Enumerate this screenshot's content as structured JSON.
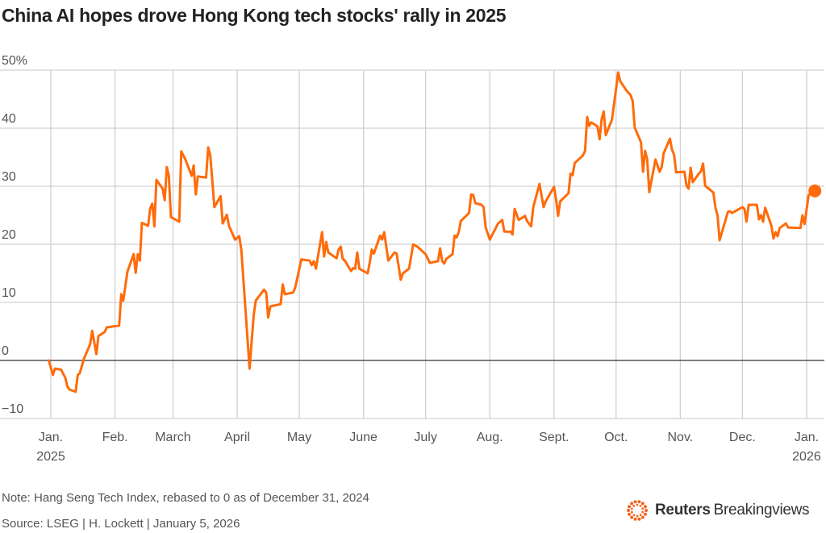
{
  "title": "China AI hopes drove Hong Kong tech stocks' rally in 2025",
  "note": "Note: Hang Seng Tech Index, rebased to 0 as of December 31, 2024",
  "source": "Source: LSEG | H. Lockett | January 5, 2026",
  "logo": {
    "brand": "Reuters",
    "product": "Breakingviews"
  },
  "colors": {
    "line": "#ff6b0a",
    "grid": "#d0d0d0",
    "zero_line": "#333333",
    "text": "#222222",
    "muted": "#555555"
  },
  "chart_data": {
    "type": "line",
    "title": "China AI hopes drove Hong Kong tech stocks' rally in 2025",
    "xlabel": "",
    "ylabel": "",
    "ylim": [
      -10,
      50
    ],
    "xlim": [
      "2024-12-31",
      "2026-01-07"
    ],
    "grid": true,
    "y_ticks": [
      {
        "value": 50,
        "label": "50%"
      },
      {
        "value": 40,
        "label": "40"
      },
      {
        "value": 30,
        "label": "30"
      },
      {
        "value": 20,
        "label": "20"
      },
      {
        "value": 10,
        "label": "10"
      },
      {
        "value": 0,
        "label": "0"
      },
      {
        "value": -10,
        "label": "−10"
      }
    ],
    "x_ticks": [
      {
        "date": "2025-01-01",
        "label": "Jan.",
        "sub": "2025"
      },
      {
        "date": "2025-02-01",
        "label": "Feb.",
        "sub": ""
      },
      {
        "date": "2025-03-01",
        "label": "March",
        "sub": ""
      },
      {
        "date": "2025-04-01",
        "label": "April",
        "sub": ""
      },
      {
        "date": "2025-05-01",
        "label": "May",
        "sub": ""
      },
      {
        "date": "2025-06-01",
        "label": "June",
        "sub": ""
      },
      {
        "date": "2025-07-01",
        "label": "July",
        "sub": ""
      },
      {
        "date": "2025-08-01",
        "label": "Aug.",
        "sub": ""
      },
      {
        "date": "2025-09-01",
        "label": "Sept.",
        "sub": ""
      },
      {
        "date": "2025-10-01",
        "label": "Oct.",
        "sub": ""
      },
      {
        "date": "2025-11-01",
        "label": "Nov.",
        "sub": ""
      },
      {
        "date": "2025-12-01",
        "label": "Dec.",
        "sub": ""
      },
      {
        "date": "2026-01-01",
        "label": "Jan.",
        "sub": "2026"
      }
    ],
    "series": [
      {
        "end_marker": true,
        "points": [
          [
            "2024-12-31",
            0
          ],
          [
            "2025-01-02",
            -2.5
          ],
          [
            "2025-01-03",
            -1.4
          ],
          [
            "2025-01-06",
            -1.6
          ],
          [
            "2025-01-08",
            -3
          ],
          [
            "2025-01-09",
            -4.5
          ],
          [
            "2025-01-10",
            -5.0
          ],
          [
            "2025-01-13",
            -5.4
          ],
          [
            "2025-01-14",
            -2.5
          ],
          [
            "2025-01-15",
            -2.2
          ],
          [
            "2025-01-17",
            0.3
          ],
          [
            "2025-01-20",
            2.8
          ],
          [
            "2025-01-21",
            5.1
          ],
          [
            "2025-01-23",
            1.1
          ],
          [
            "2025-01-24",
            4.2
          ],
          [
            "2025-01-27",
            4.9
          ],
          [
            "2025-01-28",
            5.7
          ],
          [
            "2025-02-03",
            6.0
          ],
          [
            "2025-02-04",
            11.4
          ],
          [
            "2025-02-05",
            10.3
          ],
          [
            "2025-02-07",
            15.3
          ],
          [
            "2025-02-10",
            18.3
          ],
          [
            "2025-02-11",
            15.1
          ],
          [
            "2025-02-12",
            18.3
          ],
          [
            "2025-02-13",
            17.2
          ],
          [
            "2025-02-14",
            23.7
          ],
          [
            "2025-02-17",
            23.2
          ],
          [
            "2025-02-18",
            26.2
          ],
          [
            "2025-02-19",
            27
          ],
          [
            "2025-02-20",
            23.1
          ],
          [
            "2025-02-21",
            31.1
          ],
          [
            "2025-02-24",
            29.6
          ],
          [
            "2025-02-25",
            27.6
          ],
          [
            "2025-02-26",
            33.3
          ],
          [
            "2025-02-27",
            31.8
          ],
          [
            "2025-02-28",
            24.7
          ],
          [
            "2025-03-04",
            23.9
          ],
          [
            "2025-03-05",
            36
          ],
          [
            "2025-03-07",
            34.6
          ],
          [
            "2025-03-10",
            31.8
          ],
          [
            "2025-03-11",
            33.6
          ],
          [
            "2025-03-12",
            28.6
          ],
          [
            "2025-03-13",
            31.7
          ],
          [
            "2025-03-17",
            31.5
          ],
          [
            "2025-03-18",
            36.7
          ],
          [
            "2025-03-19",
            35.3
          ],
          [
            "2025-03-21",
            26.4
          ],
          [
            "2025-03-24",
            28.3
          ],
          [
            "2025-03-25",
            23.6
          ],
          [
            "2025-03-27",
            25.1
          ],
          [
            "2025-03-28",
            23.2
          ],
          [
            "2025-03-31",
            20.8
          ],
          [
            "2025-04-02",
            21.4
          ],
          [
            "2025-04-03",
            19
          ],
          [
            "2025-04-07",
            -1.4
          ],
          [
            "2025-04-08",
            3.3
          ],
          [
            "2025-04-09",
            7.9
          ],
          [
            "2025-04-10",
            10.3
          ],
          [
            "2025-04-14",
            12.2
          ],
          [
            "2025-04-15",
            11.7
          ],
          [
            "2025-04-16",
            7.4
          ],
          [
            "2025-04-17",
            9.3
          ],
          [
            "2025-04-22",
            9.7
          ],
          [
            "2025-04-23",
            13.1
          ],
          [
            "2025-04-24",
            11.4
          ],
          [
            "2025-04-28",
            11.7
          ],
          [
            "2025-04-29",
            12.5
          ],
          [
            "2025-05-02",
            17.4
          ],
          [
            "2025-05-06",
            17.2
          ],
          [
            "2025-05-07",
            16.4
          ],
          [
            "2025-05-08",
            17.1
          ],
          [
            "2025-05-09",
            15.8
          ],
          [
            "2025-05-12",
            22.1
          ],
          [
            "2025-05-13",
            17.9
          ],
          [
            "2025-05-14",
            20.4
          ],
          [
            "2025-05-15",
            18.6
          ],
          [
            "2025-05-19",
            17.6
          ],
          [
            "2025-05-20",
            19.1
          ],
          [
            "2025-05-21",
            19.6
          ],
          [
            "2025-05-22",
            17.5
          ],
          [
            "2025-05-23",
            17.2
          ],
          [
            "2025-05-26",
            15.4
          ],
          [
            "2025-05-27",
            15.9
          ],
          [
            "2025-05-28",
            15.8
          ],
          [
            "2025-05-29",
            18.6
          ],
          [
            "2025-05-30",
            15.8
          ],
          [
            "2025-06-03",
            15
          ],
          [
            "2025-06-04",
            16.8
          ],
          [
            "2025-06-05",
            19.1
          ],
          [
            "2025-06-06",
            18.4
          ],
          [
            "2025-06-09",
            21.5
          ],
          [
            "2025-06-10",
            20.8
          ],
          [
            "2025-06-11",
            22.1
          ],
          [
            "2025-06-13",
            17.2
          ],
          [
            "2025-06-16",
            18.6
          ],
          [
            "2025-06-17",
            18.4
          ],
          [
            "2025-06-19",
            13.9
          ],
          [
            "2025-06-20",
            15
          ],
          [
            "2025-06-23",
            15.8
          ],
          [
            "2025-06-25",
            20
          ],
          [
            "2025-06-27",
            19.6
          ],
          [
            "2025-07-01",
            18.3
          ],
          [
            "2025-07-03",
            16.8
          ],
          [
            "2025-07-07",
            17.1
          ],
          [
            "2025-07-08",
            19.3
          ],
          [
            "2025-07-09",
            17.1
          ],
          [
            "2025-07-10",
            16.7
          ],
          [
            "2025-07-11",
            17.5
          ],
          [
            "2025-07-14",
            18.3
          ],
          [
            "2025-07-15",
            21.5
          ],
          [
            "2025-07-16",
            21.2
          ],
          [
            "2025-07-17",
            22.1
          ],
          [
            "2025-07-18",
            24
          ],
          [
            "2025-07-22",
            25.4
          ],
          [
            "2025-07-23",
            28.6
          ],
          [
            "2025-07-24",
            28.5
          ],
          [
            "2025-07-25",
            27.1
          ],
          [
            "2025-07-28",
            26.8
          ],
          [
            "2025-07-29",
            26.4
          ],
          [
            "2025-07-30",
            22.9
          ],
          [
            "2025-08-01",
            20.8
          ],
          [
            "2025-08-05",
            23.6
          ],
          [
            "2025-08-07",
            24.2
          ],
          [
            "2025-08-08",
            22.2
          ],
          [
            "2025-08-11",
            22.2
          ],
          [
            "2025-08-12",
            21.7
          ],
          [
            "2025-08-13",
            26.1
          ],
          [
            "2025-08-15",
            24.2
          ],
          [
            "2025-08-18",
            24.9
          ],
          [
            "2025-08-19",
            24
          ],
          [
            "2025-08-21",
            23.1
          ],
          [
            "2025-08-22",
            26.4
          ],
          [
            "2025-08-25",
            30.4
          ],
          [
            "2025-08-27",
            26.4
          ],
          [
            "2025-08-28",
            27.4
          ],
          [
            "2025-09-01",
            29.9
          ],
          [
            "2025-09-02",
            27.8
          ],
          [
            "2025-09-03",
            24.9
          ],
          [
            "2025-09-04",
            27.4
          ],
          [
            "2025-09-08",
            28.8
          ],
          [
            "2025-09-09",
            32.2
          ],
          [
            "2025-09-10",
            31.9
          ],
          [
            "2025-09-11",
            34
          ],
          [
            "2025-09-15",
            35.3
          ],
          [
            "2025-09-16",
            36.1
          ],
          [
            "2025-09-17",
            41.9
          ],
          [
            "2025-09-18",
            40.4
          ],
          [
            "2025-09-19",
            41
          ],
          [
            "2025-09-22",
            40.3
          ],
          [
            "2025-09-23",
            38.1
          ],
          [
            "2025-09-24",
            41.5
          ],
          [
            "2025-09-25",
            42.9
          ],
          [
            "2025-09-26",
            38.8
          ],
          [
            "2025-09-29",
            41.5
          ],
          [
            "2025-10-02",
            49.6
          ],
          [
            "2025-10-03",
            48.1
          ],
          [
            "2025-10-06",
            46.5
          ],
          [
            "2025-10-08",
            45.7
          ],
          [
            "2025-10-09",
            44.7
          ],
          [
            "2025-10-10",
            40.1
          ],
          [
            "2025-10-13",
            37.6
          ],
          [
            "2025-10-14",
            32.5
          ],
          [
            "2025-10-15",
            36.1
          ],
          [
            "2025-10-16",
            34.7
          ],
          [
            "2025-10-17",
            29
          ],
          [
            "2025-10-20",
            34.6
          ],
          [
            "2025-10-22",
            32.5
          ],
          [
            "2025-10-23",
            33.3
          ],
          [
            "2025-10-24",
            35.7
          ],
          [
            "2025-10-27",
            38.2
          ],
          [
            "2025-10-28",
            36.3
          ],
          [
            "2025-10-29",
            35.4
          ],
          [
            "2025-10-30",
            32.4
          ],
          [
            "2025-11-03",
            32.5
          ],
          [
            "2025-11-04",
            30.1
          ],
          [
            "2025-11-05",
            29.6
          ],
          [
            "2025-11-06",
            33.2
          ],
          [
            "2025-11-07",
            30.7
          ],
          [
            "2025-11-10",
            32.2
          ],
          [
            "2025-11-11",
            32.6
          ],
          [
            "2025-11-12",
            33.9
          ],
          [
            "2025-11-13",
            30.1
          ],
          [
            "2025-11-17",
            28.9
          ],
          [
            "2025-11-18",
            26.3
          ],
          [
            "2025-11-19",
            24.9
          ],
          [
            "2025-11-20",
            20.7
          ],
          [
            "2025-11-24",
            25.6
          ],
          [
            "2025-11-25",
            25.7
          ],
          [
            "2025-11-26",
            25.4
          ],
          [
            "2025-12-01",
            26.4
          ],
          [
            "2025-12-02",
            26.1
          ],
          [
            "2025-12-03",
            23.9
          ],
          [
            "2025-12-04",
            26.8
          ],
          [
            "2025-12-08",
            26.8
          ],
          [
            "2025-12-09",
            24.3
          ],
          [
            "2025-12-10",
            25
          ],
          [
            "2025-12-11",
            23.9
          ],
          [
            "2025-12-12",
            26.3
          ],
          [
            "2025-12-15",
            23.2
          ],
          [
            "2025-12-16",
            21
          ],
          [
            "2025-12-17",
            22.1
          ],
          [
            "2025-12-18",
            21.4
          ],
          [
            "2025-12-19",
            22.8
          ],
          [
            "2025-12-22",
            23.6
          ],
          [
            "2025-12-23",
            22.9
          ],
          [
            "2025-12-29",
            22.8
          ],
          [
            "2025-12-30",
            25
          ],
          [
            "2025-12-31",
            23.5
          ],
          [
            "2026-01-02",
            28.5
          ],
          [
            "2026-01-05",
            29.2
          ]
        ]
      }
    ]
  }
}
